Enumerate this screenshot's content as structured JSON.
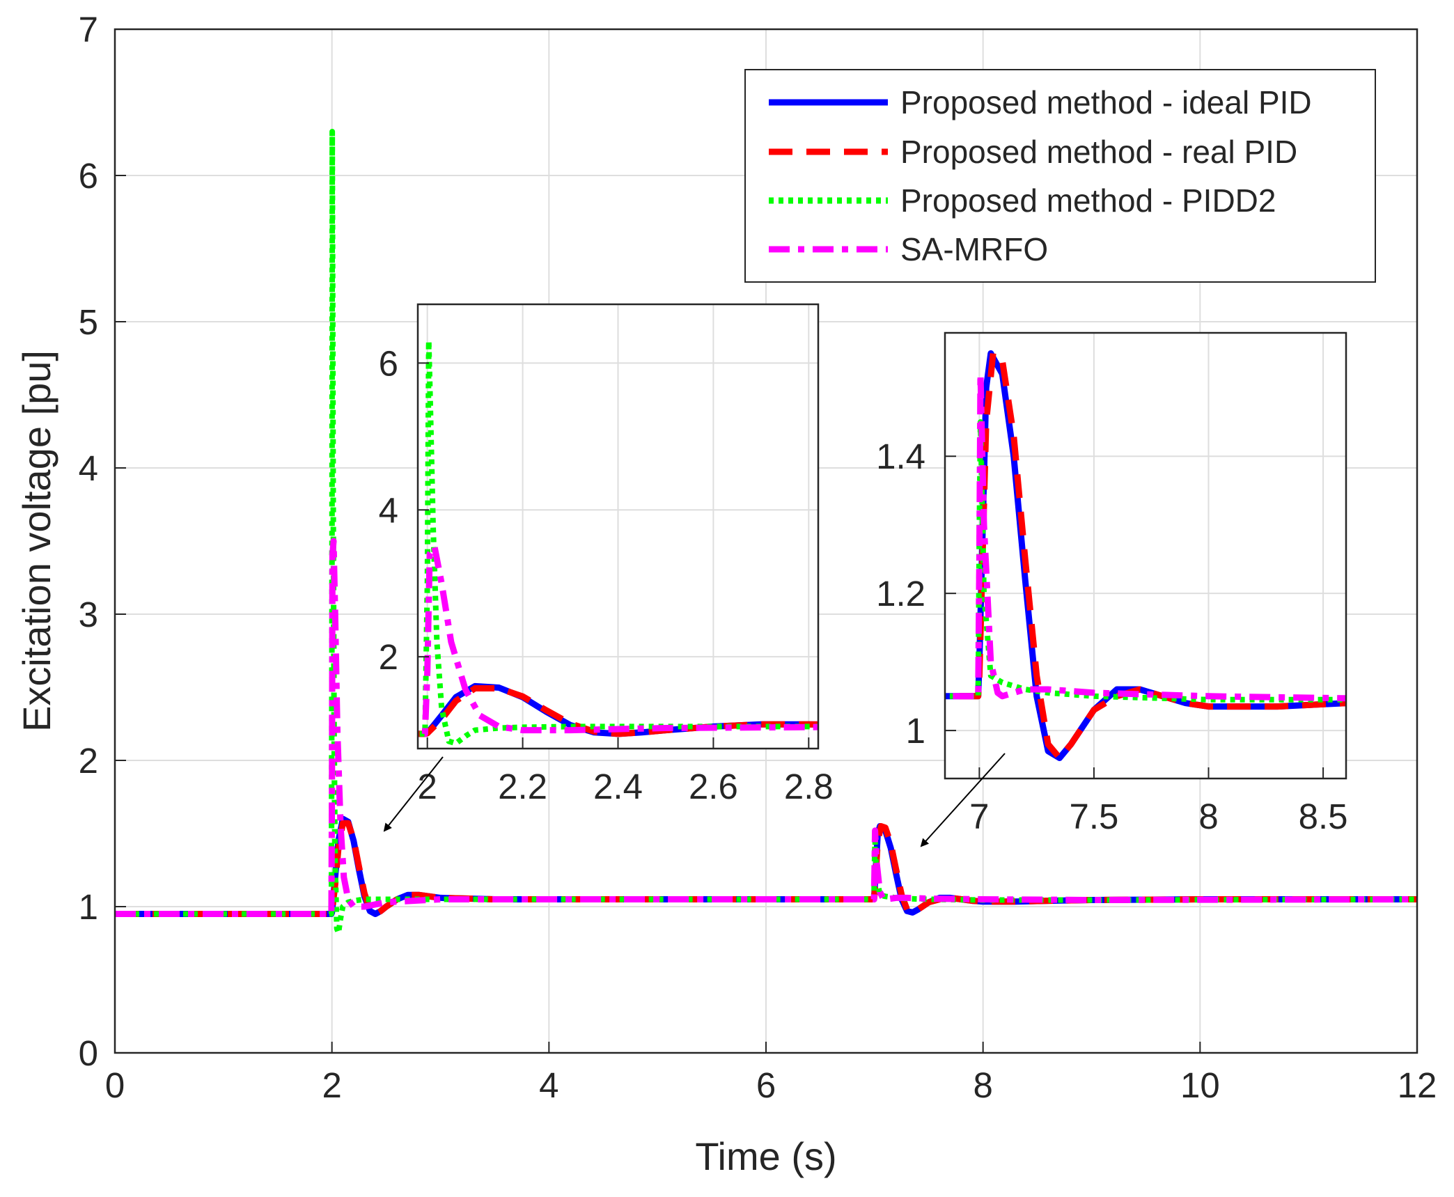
{
  "chart_data": [
    {
      "id": "main",
      "type": "line",
      "title": "",
      "xlabel": "Time (s)",
      "ylabel": "Excitation voltage [pu]",
      "xlim": [
        0,
        12
      ],
      "ylim": [
        0,
        7
      ],
      "xticks": [
        0,
        2,
        4,
        6,
        8,
        10,
        12
      ],
      "yticks": [
        0,
        1,
        2,
        3,
        4,
        5,
        6,
        7
      ],
      "grid": true,
      "legend_position": "top-right",
      "series": [
        {
          "name": "Proposed method - ideal PID",
          "color": "#0000ff",
          "style": "solid",
          "x": [
            0,
            1.995,
            2.0,
            2.03,
            2.06,
            2.1,
            2.15,
            2.2,
            2.25,
            2.3,
            2.35,
            2.4,
            2.45,
            2.5,
            2.6,
            2.7,
            2.8,
            2.9,
            3.0,
            3.5,
            4,
            5,
            6,
            6.995,
            7.0,
            7.03,
            7.05,
            7.1,
            7.15,
            7.2,
            7.25,
            7.3,
            7.35,
            7.4,
            7.5,
            7.6,
            7.7,
            7.8,
            7.9,
            8.0,
            8.3,
            8.6,
            9,
            10,
            11,
            12
          ],
          "y": [
            0.95,
            0.95,
            0.96,
            1.2,
            1.45,
            1.6,
            1.58,
            1.45,
            1.25,
            1.07,
            0.97,
            0.95,
            0.97,
            1.0,
            1.05,
            1.08,
            1.08,
            1.07,
            1.06,
            1.05,
            1.05,
            1.05,
            1.05,
            1.05,
            1.1,
            1.5,
            1.55,
            1.52,
            1.4,
            1.22,
            1.05,
            0.97,
            0.96,
            0.98,
            1.03,
            1.06,
            1.06,
            1.05,
            1.04,
            1.035,
            1.035,
            1.04,
            1.045,
            1.05,
            1.05,
            1.05
          ]
        },
        {
          "name": "Proposed method - real PID",
          "color": "#ff0000",
          "style": "dashed",
          "x": [
            0,
            1.995,
            2.0,
            2.03,
            2.06,
            2.1,
            2.15,
            2.2,
            2.25,
            2.3,
            2.35,
            2.4,
            2.45,
            2.5,
            2.6,
            2.7,
            2.8,
            2.9,
            3.0,
            3.5,
            4,
            5,
            6,
            6.995,
            7.0,
            7.03,
            7.06,
            7.1,
            7.15,
            7.2,
            7.25,
            7.3,
            7.35,
            7.4,
            7.5,
            7.6,
            7.7,
            7.8,
            7.9,
            8.0,
            8.3,
            8.6,
            9,
            10,
            11,
            12
          ],
          "y": [
            0.95,
            0.95,
            0.96,
            1.15,
            1.4,
            1.57,
            1.57,
            1.46,
            1.27,
            1.09,
            0.98,
            0.95,
            0.97,
            1.0,
            1.05,
            1.08,
            1.08,
            1.07,
            1.06,
            1.05,
            1.05,
            1.05,
            1.05,
            1.05,
            1.08,
            1.45,
            1.55,
            1.54,
            1.43,
            1.25,
            1.08,
            0.98,
            0.96,
            0.98,
            1.03,
            1.05,
            1.06,
            1.05,
            1.04,
            1.035,
            1.035,
            1.04,
            1.045,
            1.05,
            1.05,
            1.05
          ]
        },
        {
          "name": "Proposed method - PIDD2",
          "color": "#00ff00",
          "style": "dotted",
          "x": [
            0,
            1.995,
            2.0,
            2.003,
            2.006,
            2.012,
            2.02,
            2.03,
            2.045,
            2.06,
            2.08,
            2.1,
            2.15,
            2.2,
            2.3,
            2.5,
            3,
            6,
            6.995,
            7.0,
            7.005,
            7.02,
            7.05,
            7.1,
            7.15,
            7.2,
            7.3,
            7.5,
            8,
            9,
            12
          ],
          "y": [
            0.95,
            0.95,
            3.0,
            6.3,
            5.5,
            3.8,
            2.2,
            1.3,
            0.85,
            0.82,
            0.92,
            1.0,
            1.03,
            1.04,
            1.05,
            1.05,
            1.05,
            1.05,
            1.05,
            1.3,
            1.45,
            1.2,
            1.08,
            1.07,
            1.065,
            1.06,
            1.055,
            1.05,
            1.045,
            1.045,
            1.05
          ]
        },
        {
          "name": "SA-MRFO",
          "color": "#ff00ff",
          "style": "dashdot",
          "x": [
            0,
            1.995,
            2.0,
            2.005,
            2.015,
            2.03,
            2.05,
            2.08,
            2.11,
            2.15,
            2.2,
            2.3,
            2.5,
            3,
            6,
            6.995,
            7.0,
            7.005,
            7.02,
            7.05,
            7.08,
            7.1,
            7.15,
            7.2,
            7.3,
            7.5,
            8,
            9,
            12
          ],
          "y": [
            0.95,
            0.95,
            1.8,
            3.4,
            3.5,
            3.0,
            2.2,
            1.55,
            1.2,
            1.05,
            1.0,
            1.0,
            1.03,
            1.05,
            1.05,
            1.05,
            1.25,
            1.52,
            1.3,
            1.1,
            1.055,
            1.05,
            1.055,
            1.06,
            1.06,
            1.055,
            1.05,
            1.045,
            1.05
          ]
        }
      ]
    },
    {
      "id": "inset-1",
      "type": "line",
      "title": "",
      "xlim": [
        1.98,
        2.82
      ],
      "ylim": [
        0.75,
        6.8
      ],
      "xticks": [
        2,
        2.2,
        2.4,
        2.6,
        2.8
      ],
      "xtick_labels": [
        "2",
        "2.2",
        "2.4",
        "2.6",
        "2.8"
      ],
      "yticks": [
        2,
        4,
        6
      ],
      "ytick_labels": [
        "2",
        "4",
        "6"
      ],
      "grid": true
    },
    {
      "id": "inset-2",
      "type": "line",
      "title": "",
      "xlim": [
        6.85,
        8.6
      ],
      "ylim": [
        0.93,
        1.58
      ],
      "xticks": [
        7,
        7.5,
        8,
        8.5
      ],
      "xtick_labels": [
        "7",
        "7.5",
        "8",
        "8.5"
      ],
      "yticks": [
        1,
        1.2,
        1.4
      ],
      "ytick_labels": [
        "1",
        "1.2",
        "1.4"
      ],
      "grid": true
    }
  ]
}
